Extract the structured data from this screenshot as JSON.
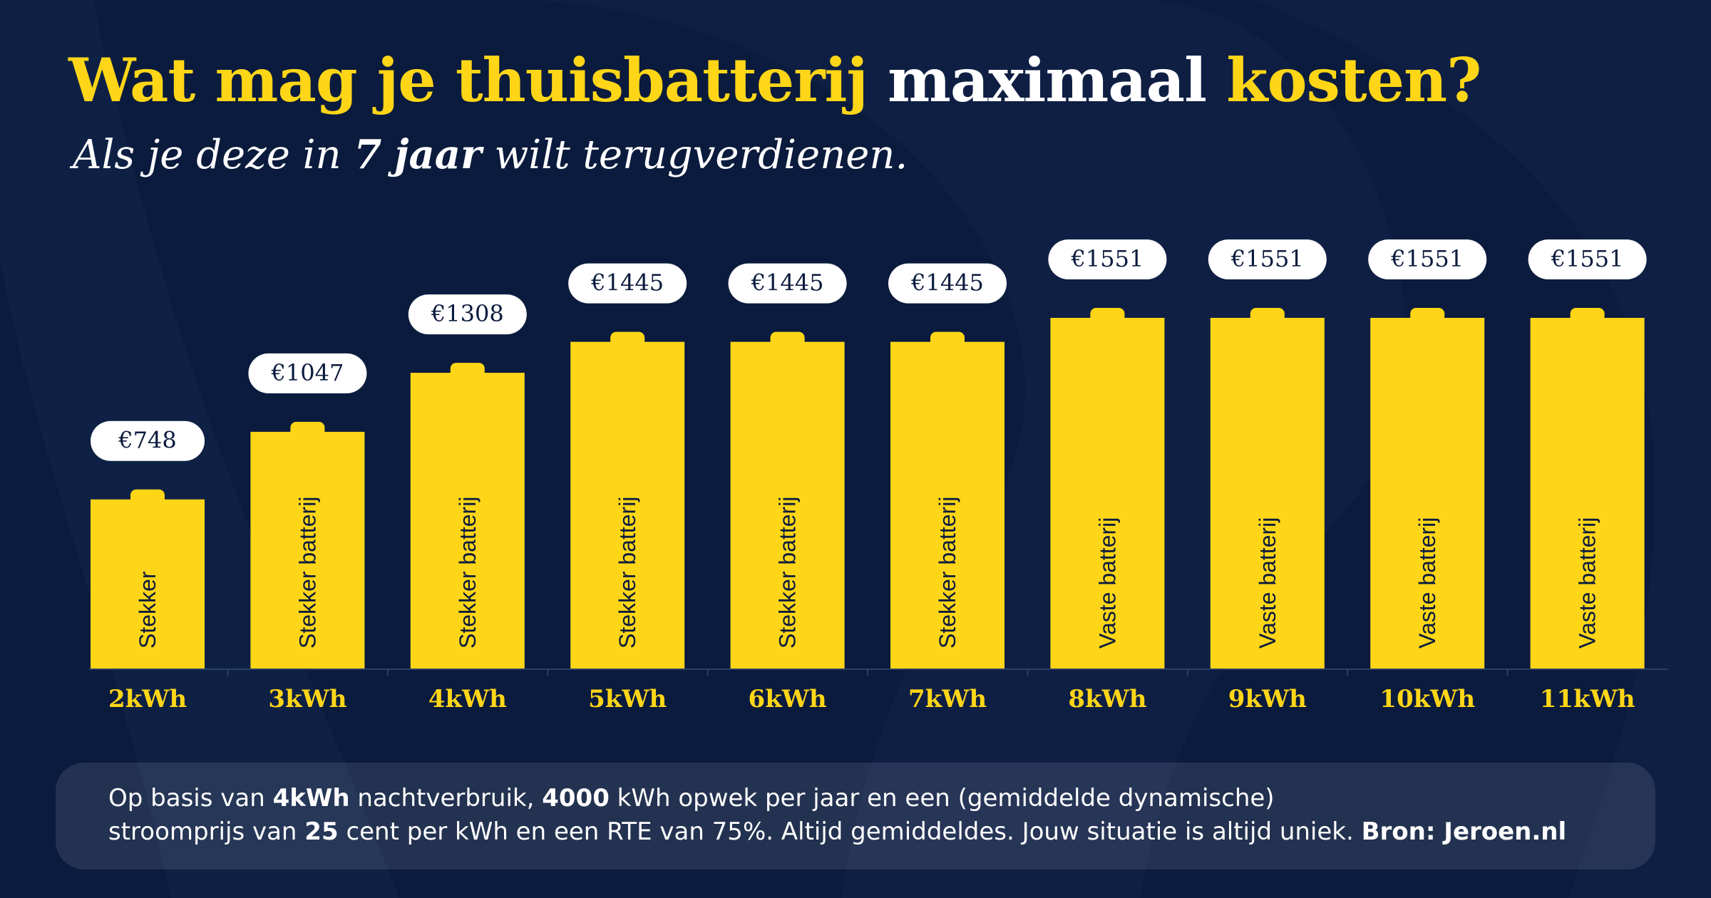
{
  "title": {
    "part1": "Wat mag je thuisbatterij",
    "part2": "maximaal",
    "part3": "kosten?"
  },
  "subtitle": {
    "before": "Als je deze in",
    "number": "7",
    "unit": "jaar",
    "after": "wilt terugverdienen."
  },
  "chart_data": {
    "type": "bar",
    "categories": [
      "2kWh",
      "3kWh",
      "4kWh",
      "5kWh",
      "6kWh",
      "7kWh",
      "8kWh",
      "9kWh",
      "10kWh",
      "11kWh"
    ],
    "values": [
      748,
      1047,
      1308,
      1445,
      1445,
      1445,
      1551,
      1551,
      1551,
      1551
    ],
    "value_labels": [
      "€748",
      "€1047",
      "€1308",
      "€1445",
      "€1445",
      "€1445",
      "€1551",
      "€1551",
      "€1551",
      "€1551"
    ],
    "bar_labels": [
      "Stekker",
      "Stekker batterij",
      "Stekker batterij",
      "Stekker batterij",
      "Stekker batterij",
      "Stekker batterij",
      "Vaste batterij",
      "Vaste batterij",
      "Vaste batterij",
      "Vaste batterij"
    ],
    "title": "",
    "xlabel": "",
    "ylabel": "",
    "ylim": [
      0,
      1551
    ],
    "grid": false,
    "bar_color": "#ffd617",
    "label_bg": "#ffffff",
    "label_color": "#0b1b3d",
    "category_color": "#ffd617"
  },
  "note": {
    "l1": {
      "t1": "Op basis van",
      "b1": "4kWh",
      "t2": "nachtverbruik,",
      "b2": "4000",
      "t3": "kWh opwek per jaar en een (gemiddelde dynamische)"
    },
    "l2": {
      "t1": "stroomprijs van",
      "b1": "25",
      "t2": "cent per kWh en een RTE van 75%. Altijd gemiddeldes. Jouw situatie is altijd uniek.",
      "b2": "Bron: Jeroen.nl"
    }
  },
  "colors": {
    "background": "#0b1b3d",
    "accent": "#ffd617",
    "text": "#ffffff"
  }
}
